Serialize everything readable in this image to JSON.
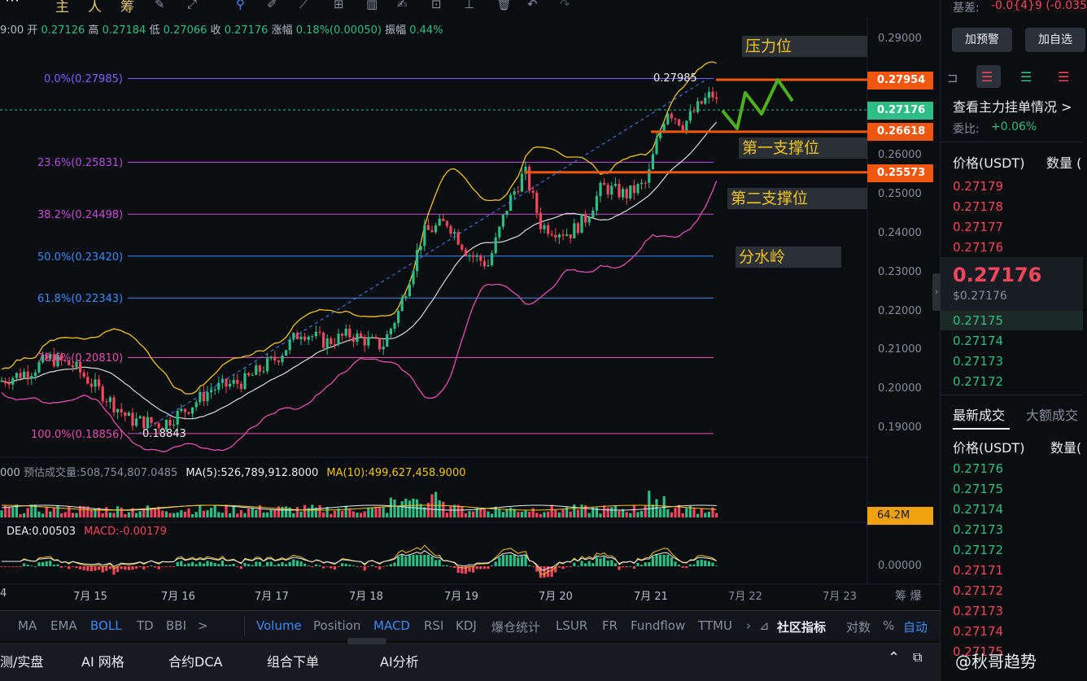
{
  "toolbar": {
    "icons": [
      "主",
      "人",
      "筹"
    ],
    "tools": [
      "pencil-icon",
      "arrow-icon",
      "fib-icon",
      "pen-icon",
      "ruler-icon",
      "measure-icon",
      "bars-icon",
      "doc-icon",
      "edit-icon",
      "line-icon",
      "delete-icon",
      "undo-icon",
      "redo-icon"
    ]
  },
  "ohlc": {
    "time": "9:00",
    "open_label": "开",
    "open": "0.27126",
    "high_label": "高",
    "high": "0.27184",
    "low_label": "低",
    "low": "0.27066",
    "close_label": "收",
    "close": "0.27176",
    "change_label": "涨幅",
    "change": "0.18%(0.00050)",
    "amp_label": "振幅",
    "amp": "0.44%"
  },
  "annotations": {
    "resistance": "压力位",
    "support1": "第一支撑位",
    "support2": "第二支撑位",
    "watershed": "分水岭"
  },
  "levels": {
    "l1": "0.27954",
    "last": "0.27176",
    "l2": "0.26618",
    "l3": "0.25573",
    "vol_tag": "64.2M",
    "high_mark": "0.27985",
    "low_mark": "0.18843"
  },
  "fib": [
    {
      "label": "0.0%(0.27985)",
      "color": "#7b61ff"
    },
    {
      "label": "23.6%(0.25831)",
      "color": "#b04fd8"
    },
    {
      "label": "38.2%(0.24498)",
      "color": "#c34fd0"
    },
    {
      "label": "50.0%(0.23420)",
      "color": "#3d8af7"
    },
    {
      "label": "61.8%(0.22343)",
      "color": "#3d8af7"
    },
    {
      "label": "78.6%(0.20810)",
      "color": "#e04fb0"
    },
    {
      "label": "100.0%(0.18856)",
      "color": "#e04fb0"
    }
  ],
  "volume_info": {
    "prefix": "000",
    "est": "预估成交量:508,754,807.0485",
    "ma5": "MA(5):526,789,912.8000",
    "ma10": "MA(10):499,627,458.9000"
  },
  "macd_info": {
    "dea": "DEA:0.00503",
    "macd": "MACD:-0.00179",
    "zero_label": "0.00000"
  },
  "dates": [
    "4",
    "7月 15",
    "7月 16",
    "7月 17",
    "7月 18",
    "7月 19",
    "7月 20",
    "7月 21",
    "7月 22",
    "7月 23"
  ],
  "indicators_left": [
    "MA",
    "EMA",
    "BOLL",
    "TD",
    "BBI",
    ">"
  ],
  "indicators_right": [
    "Volume",
    "Position",
    "MACD",
    "RSI",
    "KDJ",
    "爆仓统计",
    "LSUR",
    "FR",
    "Fundflow",
    "TTMU",
    "›",
    "社区指标",
    "对数",
    "%",
    "自动"
  ],
  "bottom_tabs": [
    "测/实盘",
    "AI 网格",
    "合约DCA",
    "组合下单",
    "AI分析"
  ],
  "chart_data": {
    "type": "candlestick",
    "yaxis_ticks": [
      "0.29000",
      "0.28000",
      "0.27000",
      "0.26000",
      "0.25000",
      "0.24000",
      "0.23000",
      "0.22000",
      "0.21000",
      "0.20000",
      "0.19000"
    ],
    "ylim": [
      0.185,
      0.293
    ],
    "fib_levels": [
      0.27985,
      0.25831,
      0.24498,
      0.2342,
      0.22343,
      0.2081,
      0.18856
    ],
    "lines": [
      0.27954,
      0.27176,
      0.26618,
      0.25573
    ],
    "high": 0.27985,
    "low": 0.18843,
    "last": 0.27176,
    "x_dates": [
      "7月 15",
      "7月 16",
      "7月 17",
      "7月 18",
      "7月 19",
      "7月 20",
      "7月 21",
      "7月 22",
      "7月 23"
    ]
  },
  "right_panel": {
    "basis_label": "基差:",
    "basis_value": "-0.0{4}9 (-0.035",
    "alert_btn": "加预警",
    "watch_btn": "加自选",
    "main_orders": "查看主力挂单情况 >",
    "ratio_label": "委比:",
    "ratio_value": "+0.06%",
    "price_header": "价格(USDT)",
    "qty_header": "数量 (",
    "asks": [
      "0.27179",
      "0.27178",
      "0.27177",
      "0.27176"
    ],
    "last_price": "0.27176",
    "last_usd": "$0.27176",
    "bids": [
      "0.27175",
      "0.27174",
      "0.27173",
      "0.27172"
    ],
    "trades_tab": "最新成交",
    "big_tab": "大额成交",
    "trades_price_header": "价格(USDT)",
    "trades_qty_header": "数量(",
    "trades": [
      {
        "p": "0.27176",
        "side": "buy"
      },
      {
        "p": "0.27175",
        "side": "buy"
      },
      {
        "p": "0.27174",
        "side": "buy"
      },
      {
        "p": "0.27173",
        "side": "buy"
      },
      {
        "p": "0.27172",
        "side": "buy"
      },
      {
        "p": "0.27171",
        "side": "sell"
      },
      {
        "p": "0.27172",
        "side": "sell"
      },
      {
        "p": "0.27173",
        "side": "sell"
      },
      {
        "p": "0.27174",
        "side": "sell"
      },
      {
        "p": "0.27175",
        "side": "sell"
      }
    ],
    "watermark": "@秋哥趋势"
  }
}
